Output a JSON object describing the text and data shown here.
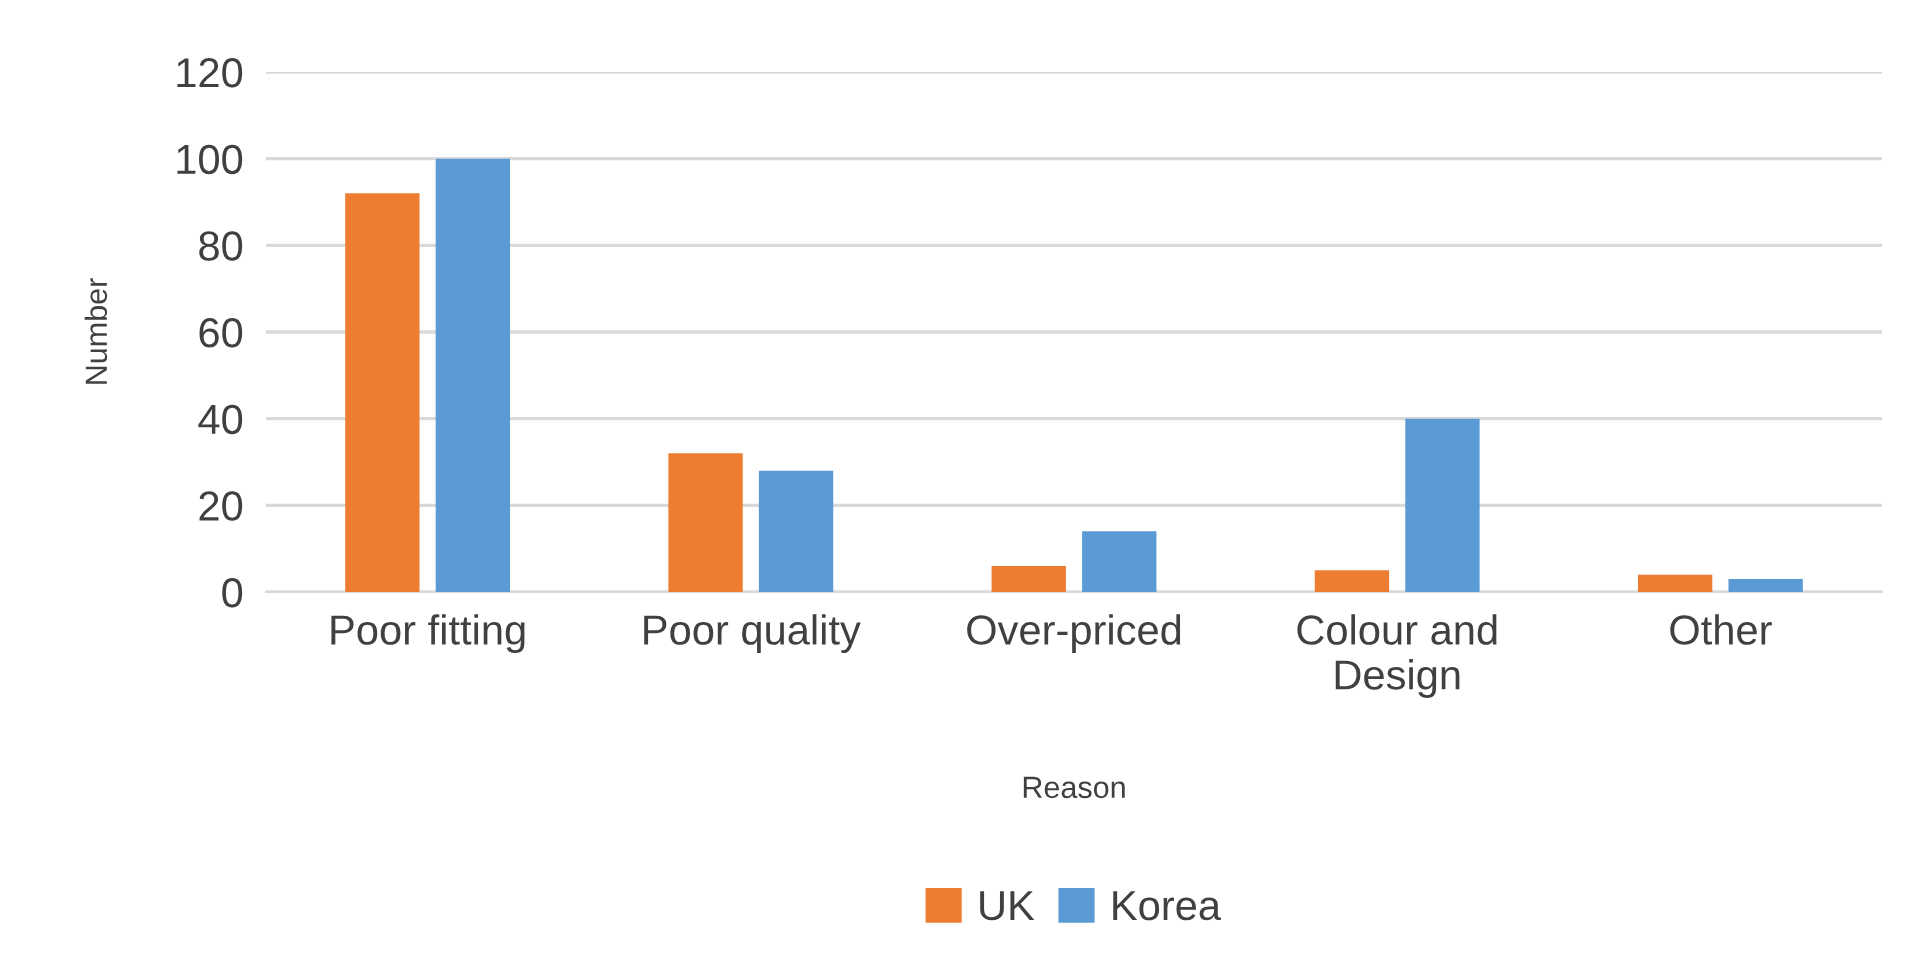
{
  "chart_data": {
    "type": "bar",
    "xlabel": "Reason",
    "ylabel": "Number",
    "categories": [
      "Poor fitting",
      "Poor quality",
      "Over-priced",
      "Colour and\nDesign",
      "Other"
    ],
    "series": [
      {
        "name": "UK",
        "color": "#ed7d31",
        "values": [
          92,
          32,
          6,
          5,
          4
        ]
      },
      {
        "name": "Korea",
        "color": "#5b9bd5",
        "values": [
          100,
          28,
          14,
          40,
          3
        ]
      }
    ],
    "ylim": [
      0,
      120
    ],
    "yticks": [
      0,
      20,
      40,
      60,
      80,
      100,
      120
    ],
    "grid": "y",
    "legend": "bottom"
  }
}
